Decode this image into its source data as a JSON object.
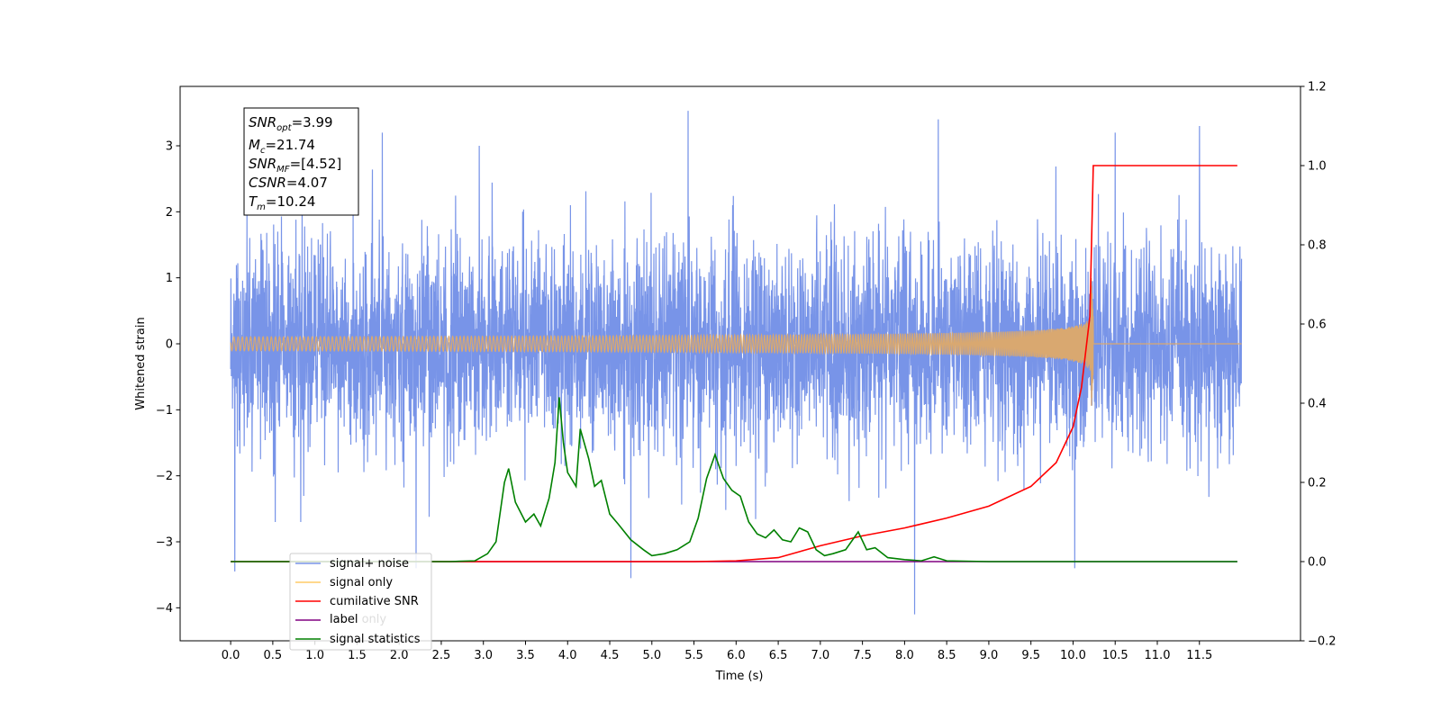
{
  "chart_data": {
    "type": "line",
    "xlabel": "Time (s)",
    "ylabel": "Whitened strain",
    "xlim": [
      -0.6,
      12.7
    ],
    "ylim": [
      -4.5,
      3.9
    ],
    "y2lim": [
      -0.2,
      1.2
    ],
    "x_ticks": [
      0.0,
      0.5,
      1.0,
      1.5,
      2.0,
      2.5,
      3.0,
      3.5,
      4.0,
      4.5,
      5.0,
      5.5,
      6.0,
      6.5,
      7.0,
      7.5,
      8.0,
      8.5,
      9.0,
      9.5,
      10.0,
      10.5,
      11.0,
      11.5
    ],
    "x_tick_labels": [
      "0.0",
      "0.5",
      "1.0",
      "1.5",
      "2.0",
      "2.5",
      "3.0",
      "3.5",
      "4.0",
      "4.5",
      "5.0",
      "5.5",
      "6.0",
      "6.5",
      "7.0",
      "7.5",
      "8.0",
      "8.5",
      "9.0",
      "9.5",
      "10.0",
      "10.5",
      "11.0",
      "11.5"
    ],
    "y_ticks": [
      -4,
      -3,
      -2,
      -1,
      0,
      1,
      2,
      3
    ],
    "y_tick_labels": [
      "−4",
      "−3",
      "−2",
      "−1",
      "0",
      "1",
      "2",
      "3"
    ],
    "y2_ticks": [
      -0.2,
      0.0,
      0.2,
      0.4,
      0.6,
      0.8,
      1.0,
      1.2
    ],
    "y2_tick_labels": [
      "−0.2",
      "0.0",
      "0.2",
      "0.4",
      "0.6",
      "0.8",
      "1.0",
      "1.2"
    ],
    "legend_position": "lower-left",
    "annotation": {
      "snr_opt": "3.99",
      "mc": "21.74",
      "snr_mf": "[4.52]",
      "csnr": "4.07",
      "tm": "10.24"
    },
    "series": [
      {
        "name": "signal+ noise",
        "color": "#7894e8",
        "axis": "left",
        "description": "whitened noise, approx. Gaussian, sigma ~0.8",
        "t_start": 0.0,
        "t_end": 12.0,
        "extremes": [
          [
            0.05,
            -3.45
          ],
          [
            1.8,
            3.2
          ],
          [
            2.2,
            -3.4
          ],
          [
            2.95,
            3.0
          ],
          [
            4.75,
            -3.55
          ],
          [
            5.43,
            3.53
          ],
          [
            8.12,
            -4.1
          ],
          [
            8.4,
            3.4
          ],
          [
            10.02,
            -3.4
          ],
          [
            10.5,
            3.2
          ],
          [
            11.5,
            3.3
          ]
        ]
      },
      {
        "name": "signal only",
        "color": "#d9a870",
        "axis": "left",
        "description": "chirp ending at merger time",
        "t_start": 0.0,
        "t_end": 12.0,
        "merger_time": 10.24,
        "peak_amplitude": 0.75
      },
      {
        "name": "cumilative SNR",
        "color": "#ff0000",
        "axis": "right",
        "points": [
          [
            0.0,
            0.0
          ],
          [
            5.5,
            0.0
          ],
          [
            6.0,
            0.002
          ],
          [
            6.5,
            0.01
          ],
          [
            7.0,
            0.04
          ],
          [
            7.5,
            0.065
          ],
          [
            8.0,
            0.085
          ],
          [
            8.5,
            0.11
          ],
          [
            9.0,
            0.14
          ],
          [
            9.5,
            0.19
          ],
          [
            9.8,
            0.25
          ],
          [
            10.0,
            0.34
          ],
          [
            10.1,
            0.44
          ],
          [
            10.2,
            0.62
          ],
          [
            10.24,
            1.0
          ],
          [
            11.95,
            1.0
          ]
        ]
      },
      {
        "name": "label",
        "color": "#800080",
        "axis": "right",
        "points": [
          [
            0.0,
            0.0
          ],
          [
            11.95,
            0.0
          ]
        ]
      },
      {
        "name": "label only",
        "color": "#ffffff",
        "axis": "right",
        "hidden": true,
        "points": []
      },
      {
        "name": "signal statistics",
        "color": "#008000",
        "axis": "right",
        "points": [
          [
            0.0,
            0.0
          ],
          [
            2.6,
            0.0
          ],
          [
            2.9,
            0.002
          ],
          [
            3.05,
            0.02
          ],
          [
            3.15,
            0.05
          ],
          [
            3.25,
            0.2
          ],
          [
            3.3,
            0.235
          ],
          [
            3.38,
            0.15
          ],
          [
            3.5,
            0.1
          ],
          [
            3.6,
            0.12
          ],
          [
            3.68,
            0.09
          ],
          [
            3.78,
            0.16
          ],
          [
            3.85,
            0.25
          ],
          [
            3.9,
            0.415
          ],
          [
            3.95,
            0.3
          ],
          [
            4.0,
            0.225
          ],
          [
            4.1,
            0.19
          ],
          [
            4.15,
            0.335
          ],
          [
            4.25,
            0.26
          ],
          [
            4.32,
            0.19
          ],
          [
            4.4,
            0.205
          ],
          [
            4.5,
            0.12
          ],
          [
            4.6,
            0.095
          ],
          [
            4.75,
            0.055
          ],
          [
            4.9,
            0.03
          ],
          [
            5.0,
            0.015
          ],
          [
            5.15,
            0.02
          ],
          [
            5.3,
            0.03
          ],
          [
            5.45,
            0.05
          ],
          [
            5.55,
            0.11
          ],
          [
            5.65,
            0.21
          ],
          [
            5.75,
            0.27
          ],
          [
            5.85,
            0.21
          ],
          [
            5.95,
            0.18
          ],
          [
            6.05,
            0.165
          ],
          [
            6.15,
            0.1
          ],
          [
            6.25,
            0.07
          ],
          [
            6.35,
            0.06
          ],
          [
            6.45,
            0.08
          ],
          [
            6.55,
            0.055
          ],
          [
            6.65,
            0.05
          ],
          [
            6.75,
            0.085
          ],
          [
            6.85,
            0.075
          ],
          [
            6.95,
            0.03
          ],
          [
            7.05,
            0.015
          ],
          [
            7.15,
            0.02
          ],
          [
            7.3,
            0.03
          ],
          [
            7.45,
            0.075
          ],
          [
            7.55,
            0.03
          ],
          [
            7.65,
            0.035
          ],
          [
            7.8,
            0.01
          ],
          [
            8.0,
            0.005
          ],
          [
            8.2,
            0.002
          ],
          [
            8.35,
            0.012
          ],
          [
            8.5,
            0.002
          ],
          [
            9.0,
            0.0
          ],
          [
            11.95,
            0.0
          ]
        ]
      }
    ]
  }
}
